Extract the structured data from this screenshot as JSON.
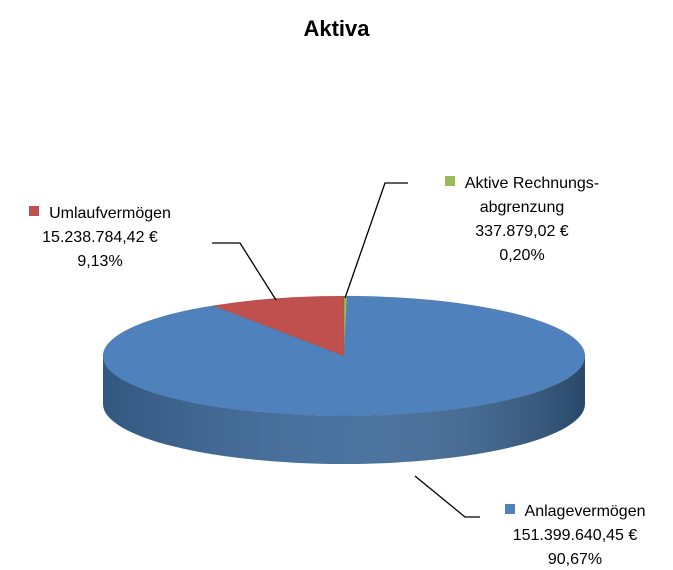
{
  "chart_data": {
    "type": "pie3d",
    "title": "Aktiva",
    "categories": [
      "Aktive Rechnungs-\nabgrenzung",
      "Anlagevermögen",
      "Umlaufvermögen"
    ],
    "values": [
      337879.02,
      151399640.45,
      15238784.42
    ],
    "value_labels": [
      "337.879,02 €",
      "151.399.640,45 €",
      "15.238.784,42 €"
    ],
    "percentages": [
      0.2,
      90.67,
      9.13
    ],
    "percentage_labels": [
      "0,20%",
      "90,67%",
      "9,13%"
    ],
    "colors": [
      "#9bbb59",
      "#4f81bd",
      "#c0504d"
    ],
    "side_colors": [
      "#7a9a3f",
      "#3b6797",
      "#973a37"
    ]
  }
}
